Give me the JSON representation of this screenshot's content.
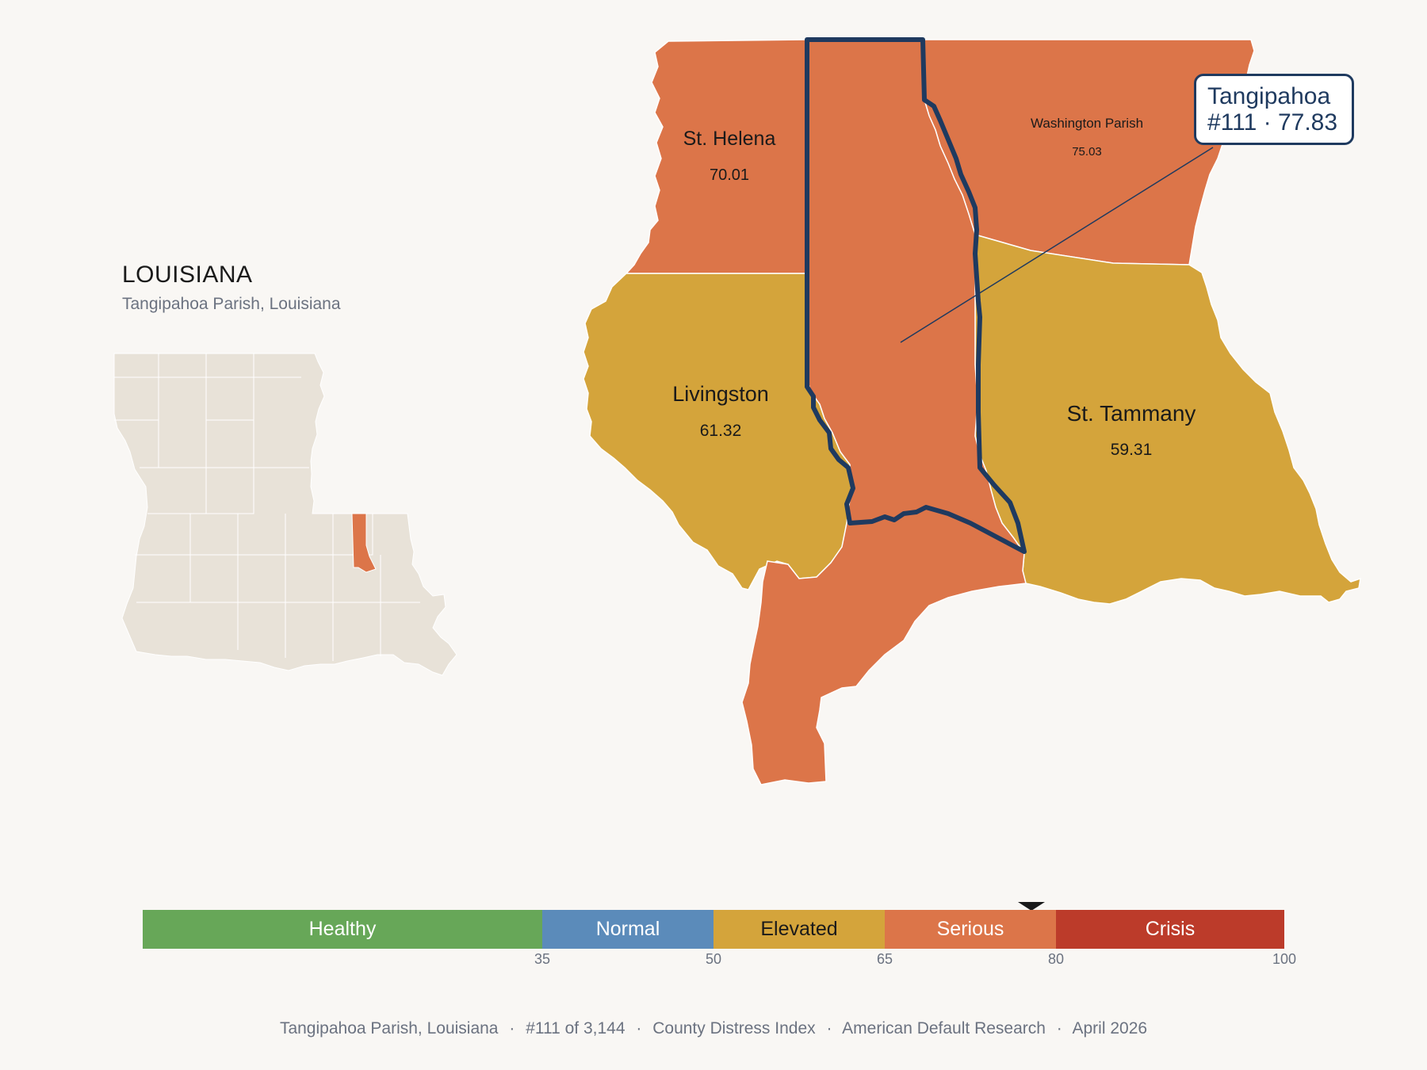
{
  "state": {
    "title": "LOUISIANA",
    "subtitle": "Tangipahoa Parish, Louisiana"
  },
  "parishes": [
    {
      "name": "St. Helena",
      "value": "70.01",
      "fill": "#dc7549"
    },
    {
      "name": "Washington Parish",
      "value": "75.03",
      "fill": "#dc7549"
    },
    {
      "name": "Livingston",
      "value": "61.32",
      "fill": "#d4a43b"
    },
    {
      "name": "St. Tammany",
      "value": "59.31",
      "fill": "#d4a43b"
    },
    {
      "name": "Tangipahoa",
      "value": "77.83",
      "fill": "#dc7549"
    }
  ],
  "tooltip": {
    "line1": "Tangipahoa",
    "line2": "#111 · 77.83"
  },
  "scale": {
    "segments": [
      {
        "label": "Healthy",
        "from": 0,
        "to": 35,
        "color": "#67a758"
      },
      {
        "label": "Normal",
        "from": 35,
        "to": 50,
        "color": "#5b8bba"
      },
      {
        "label": "Elevated",
        "from": 50,
        "to": 65,
        "color": "#d4a43b"
      },
      {
        "label": "Serious",
        "from": 65,
        "to": 80,
        "color": "#dc7549"
      },
      {
        "label": "Crisis",
        "from": 80,
        "to": 100,
        "color": "#bc3b2a"
      }
    ],
    "ticks": [
      "35",
      "50",
      "65",
      "80",
      "100"
    ],
    "marker_value": 77.83
  },
  "colors": {
    "highlight_outline": "#1f3a5f",
    "inset_fill": "#e8e2d8",
    "background": "#f9f7f4"
  },
  "footer": {
    "parts": [
      "Tangipahoa Parish, Louisiana",
      "#111 of 3,144",
      "County Distress Index",
      "American Default Research",
      "April 2026"
    ],
    "separator": "·"
  }
}
